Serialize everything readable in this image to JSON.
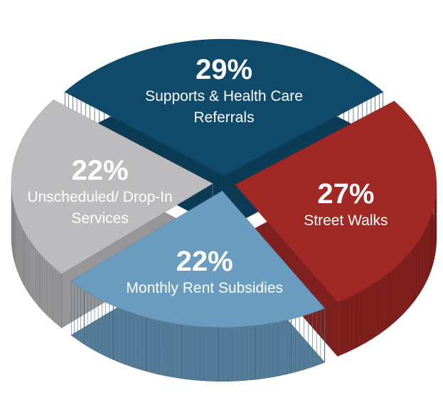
{
  "chart_data": {
    "type": "pie",
    "categories": [
      "Supports & Health Care Referrals",
      "Street Walks",
      "Monthly Rent Subsidies",
      "Unscheduled/ Drop-In Services"
    ],
    "values": [
      29,
      27,
      22,
      22
    ],
    "value_labels": [
      "29%",
      "27%",
      "22%",
      "22%"
    ],
    "colors": [
      "#0f4a6b",
      "#a02825",
      "#6a9cbf",
      "#bcbcbf"
    ]
  }
}
